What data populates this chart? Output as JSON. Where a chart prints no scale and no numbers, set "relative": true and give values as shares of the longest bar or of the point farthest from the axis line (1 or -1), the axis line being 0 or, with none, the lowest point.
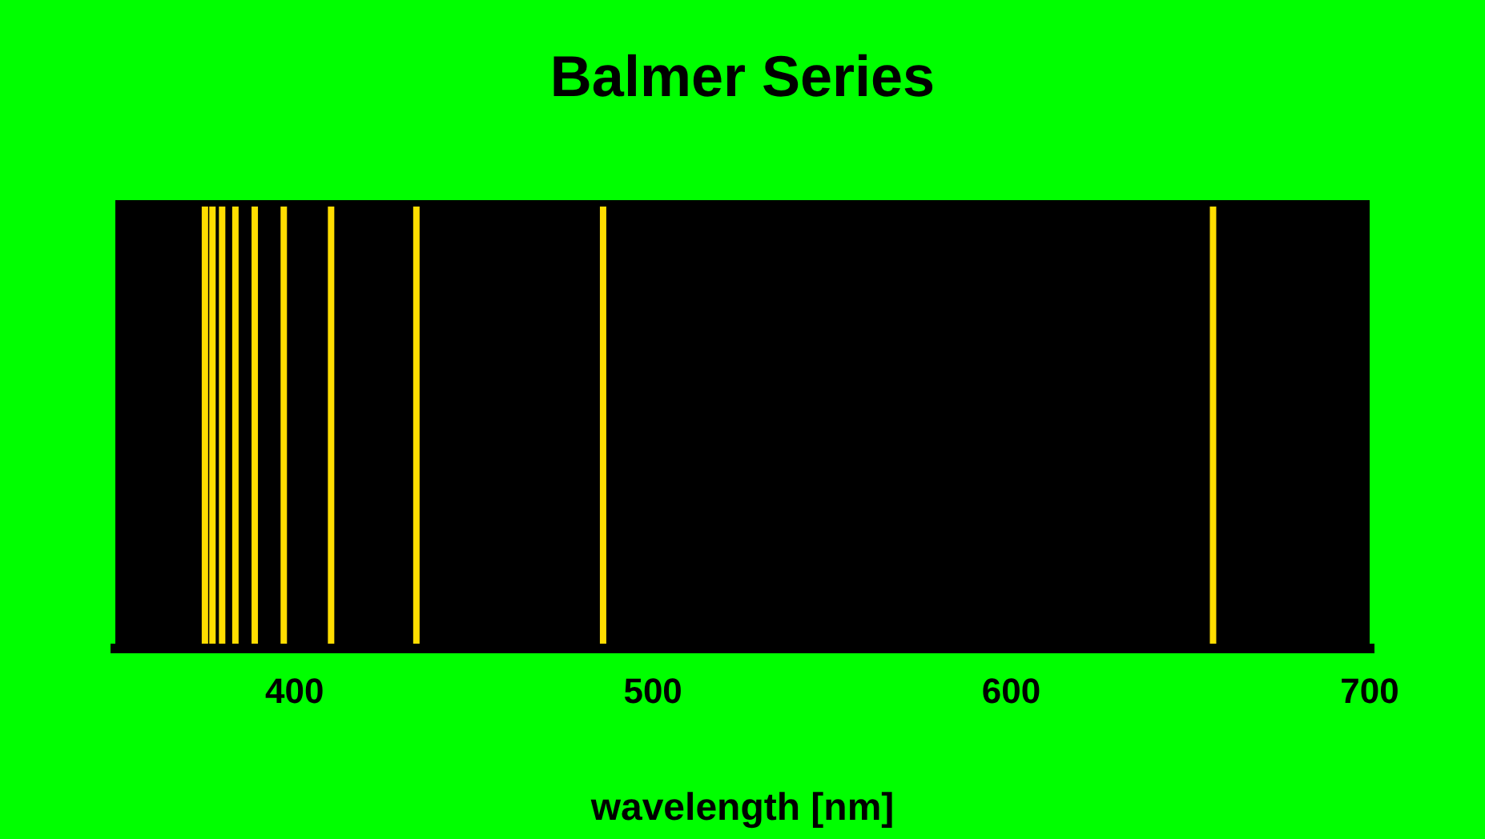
{
  "chart_data": {
    "type": "bar",
    "title": "Balmer Series",
    "xlabel": "wavelength [nm]",
    "relative": true,
    "x": [
      375.0,
      377.1,
      379.8,
      383.5,
      388.9,
      397.0,
      410.2,
      434.0,
      486.1,
      656.3
    ],
    "values": [
      1,
      1,
      1,
      1,
      1,
      1,
      1,
      1,
      1,
      1
    ],
    "color": "#ffdd00",
    "xlim": [
      350,
      700
    ],
    "xticks": [
      400,
      500,
      600,
      700
    ],
    "grid": false
  }
}
